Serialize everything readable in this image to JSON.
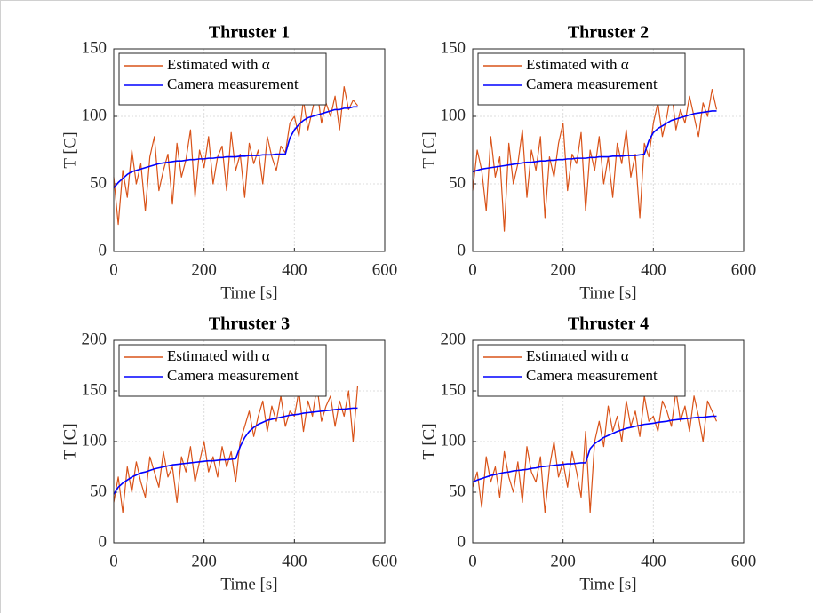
{
  "chart_data": [
    {
      "type": "line",
      "title": "Thruster 1",
      "xlabel": "Time [s]",
      "ylabel": "T [C]",
      "xlim": [
        0,
        600
      ],
      "xticks": [
        0,
        200,
        400,
        600
      ],
      "ylim": [
        0,
        150
      ],
      "yticks": [
        0,
        50,
        100,
        150
      ],
      "grid": true,
      "legend": "northwest",
      "x": [
        0,
        10,
        20,
        30,
        40,
        50,
        60,
        70,
        80,
        90,
        100,
        110,
        120,
        130,
        140,
        150,
        160,
        170,
        180,
        190,
        200,
        210,
        220,
        230,
        240,
        250,
        260,
        270,
        280,
        290,
        300,
        310,
        320,
        330,
        340,
        350,
        360,
        370,
        380,
        390,
        400,
        410,
        420,
        430,
        440,
        450,
        460,
        470,
        480,
        490,
        500,
        510,
        520,
        530,
        540
      ],
      "series": [
        {
          "name": "Estimated with α",
          "color": "#d95319",
          "values": [
            55,
            20,
            60,
            40,
            75,
            50,
            65,
            30,
            70,
            85,
            45,
            60,
            72,
            35,
            80,
            55,
            68,
            90,
            40,
            75,
            62,
            85,
            50,
            70,
            78,
            45,
            88,
            60,
            72,
            40,
            80,
            65,
            75,
            50,
            85,
            70,
            60,
            78,
            73,
            95,
            100,
            85,
            112,
            90,
            105,
            120,
            95,
            110,
            100,
            115,
            90,
            122,
            105,
            112,
            108
          ]
        },
        {
          "name": "Camera measurement",
          "color": "#0000ff",
          "values": [
            47,
            51,
            54,
            57,
            59,
            60,
            61,
            62,
            63,
            64,
            65,
            65.5,
            66,
            66.5,
            67,
            67,
            67.5,
            68,
            68,
            68.5,
            68.5,
            69,
            69,
            69.5,
            69.5,
            70,
            70,
            70,
            70.5,
            70.5,
            71,
            71,
            71,
            71.5,
            71.5,
            71.5,
            72,
            72,
            72,
            84,
            90,
            94,
            97,
            99,
            100,
            101,
            102,
            103,
            104,
            105,
            105,
            106,
            106,
            107,
            107
          ]
        }
      ]
    },
    {
      "type": "line",
      "title": "Thruster 2",
      "xlabel": "Time [s]",
      "ylabel": "T [C]",
      "xlim": [
        0,
        600
      ],
      "xticks": [
        0,
        200,
        400,
        600
      ],
      "ylim": [
        0,
        150
      ],
      "yticks": [
        0,
        50,
        100,
        150
      ],
      "grid": true,
      "legend": "northwest",
      "x": [
        0,
        10,
        20,
        30,
        40,
        50,
        60,
        70,
        80,
        90,
        100,
        110,
        120,
        130,
        140,
        150,
        160,
        170,
        180,
        190,
        200,
        210,
        220,
        230,
        240,
        250,
        260,
        270,
        280,
        290,
        300,
        310,
        320,
        330,
        340,
        350,
        360,
        370,
        380,
        390,
        400,
        410,
        420,
        430,
        440,
        450,
        460,
        470,
        480,
        490,
        500,
        510,
        520,
        530,
        540
      ],
      "series": [
        {
          "name": "Estimated with α",
          "color": "#d95319",
          "values": [
            45,
            75,
            60,
            30,
            85,
            55,
            70,
            15,
            80,
            50,
            65,
            90,
            40,
            75,
            60,
            85,
            25,
            70,
            55,
            80,
            95,
            45,
            72,
            65,
            88,
            30,
            75,
            60,
            85,
            50,
            70,
            40,
            80,
            65,
            90,
            55,
            72,
            25,
            80,
            70,
            95,
            110,
            85,
            100,
            120,
            90,
            105,
            95,
            115,
            100,
            85,
            110,
            100,
            120,
            105
          ]
        },
        {
          "name": "Camera measurement",
          "color": "#0000ff",
          "values": [
            59,
            60,
            61,
            61.5,
            62,
            62.5,
            63,
            63.5,
            64,
            64.5,
            65,
            65.5,
            66,
            66,
            66.5,
            67,
            67,
            67.5,
            67.5,
            68,
            68,
            68.5,
            68.5,
            69,
            69,
            69,
            69.5,
            69.5,
            70,
            70,
            70,
            70.5,
            70.5,
            70.5,
            71,
            71,
            71,
            71.5,
            72,
            82,
            88,
            91,
            93,
            95,
            97,
            98,
            99,
            100,
            101,
            102,
            102.5,
            103,
            103.5,
            104,
            104
          ]
        }
      ]
    },
    {
      "type": "line",
      "title": "Thruster 3",
      "xlabel": "Time [s]",
      "ylabel": "T [C]",
      "xlim": [
        0,
        600
      ],
      "xticks": [
        0,
        200,
        400,
        600
      ],
      "ylim": [
        0,
        200
      ],
      "yticks": [
        0,
        50,
        100,
        150,
        200
      ],
      "grid": true,
      "legend": "northwest",
      "x": [
        0,
        10,
        20,
        30,
        40,
        50,
        60,
        70,
        80,
        90,
        100,
        110,
        120,
        130,
        140,
        150,
        160,
        170,
        180,
        190,
        200,
        210,
        220,
        230,
        240,
        250,
        260,
        270,
        280,
        290,
        300,
        310,
        320,
        330,
        340,
        350,
        360,
        370,
        380,
        390,
        400,
        410,
        420,
        430,
        440,
        450,
        460,
        470,
        480,
        490,
        500,
        510,
        520,
        530,
        540
      ],
      "series": [
        {
          "name": "Estimated with α",
          "color": "#d95319",
          "values": [
            40,
            65,
            30,
            75,
            50,
            80,
            60,
            45,
            85,
            70,
            55,
            90,
            65,
            75,
            40,
            85,
            70,
            95,
            60,
            80,
            100,
            70,
            85,
            65,
            95,
            75,
            90,
            60,
            100,
            115,
            130,
            105,
            125,
            140,
            110,
            135,
            120,
            145,
            115,
            130,
            125,
            150,
            110,
            140,
            125,
            155,
            120,
            135,
            145,
            115,
            140,
            125,
            150,
            100,
            155
          ]
        },
        {
          "name": "Camera measurement",
          "color": "#0000ff",
          "values": [
            48,
            55,
            59,
            62,
            65,
            67,
            69,
            70,
            71.5,
            73,
            74,
            75,
            76,
            77,
            77.5,
            78,
            78.5,
            79,
            79.5,
            80,
            80.5,
            81,
            81,
            81.5,
            82,
            82,
            82.5,
            83,
            95,
            104,
            110,
            114,
            117,
            119,
            121,
            122,
            123,
            124,
            125,
            126,
            126.5,
            127,
            128,
            128.5,
            129,
            129.5,
            130,
            130.5,
            131,
            131.5,
            132,
            132,
            132.5,
            133,
            133
          ]
        }
      ]
    },
    {
      "type": "line",
      "title": "Thruster 4",
      "xlabel": "Time [s]",
      "ylabel": "T [C]",
      "xlim": [
        0,
        600
      ],
      "xticks": [
        0,
        200,
        400,
        600
      ],
      "ylim": [
        0,
        200
      ],
      "yticks": [
        0,
        50,
        100,
        150,
        200
      ],
      "grid": true,
      "legend": "northwest",
      "x": [
        0,
        10,
        20,
        30,
        40,
        50,
        60,
        70,
        80,
        90,
        100,
        110,
        120,
        130,
        140,
        150,
        160,
        170,
        180,
        190,
        200,
        210,
        220,
        230,
        240,
        250,
        260,
        270,
        280,
        290,
        300,
        310,
        320,
        330,
        340,
        350,
        360,
        370,
        380,
        390,
        400,
        410,
        420,
        430,
        440,
        450,
        460,
        470,
        480,
        490,
        500,
        510,
        520,
        530,
        540
      ],
      "series": [
        {
          "name": "Estimated with α",
          "color": "#d95319",
          "values": [
            55,
            70,
            35,
            85,
            60,
            75,
            45,
            90,
            65,
            50,
            80,
            40,
            95,
            70,
            60,
            85,
            30,
            75,
            100,
            65,
            80,
            55,
            90,
            70,
            45,
            110,
            30,
            100,
            120,
            95,
            135,
            110,
            125,
            100,
            140,
            115,
            130,
            105,
            145,
            120,
            125,
            110,
            140,
            130,
            115,
            150,
            120,
            135,
            110,
            145,
            125,
            100,
            140,
            130,
            120
          ]
        },
        {
          "name": "Camera measurement",
          "color": "#0000ff",
          "values": [
            60,
            62,
            63.5,
            65,
            66.5,
            67.5,
            68.5,
            69.5,
            70,
            71,
            71.5,
            72,
            72.5,
            73.5,
            74,
            75,
            75.5,
            76,
            76.5,
            77,
            77.5,
            78,
            78,
            78.5,
            79,
            79,
            93,
            98,
            101,
            104,
            106,
            108,
            110,
            111.5,
            113,
            114,
            115,
            116,
            117,
            117.5,
            118,
            119,
            119.5,
            120,
            121,
            121.5,
            122,
            122.5,
            123,
            123.5,
            124,
            124,
            124.5,
            125,
            125
          ]
        }
      ]
    }
  ]
}
